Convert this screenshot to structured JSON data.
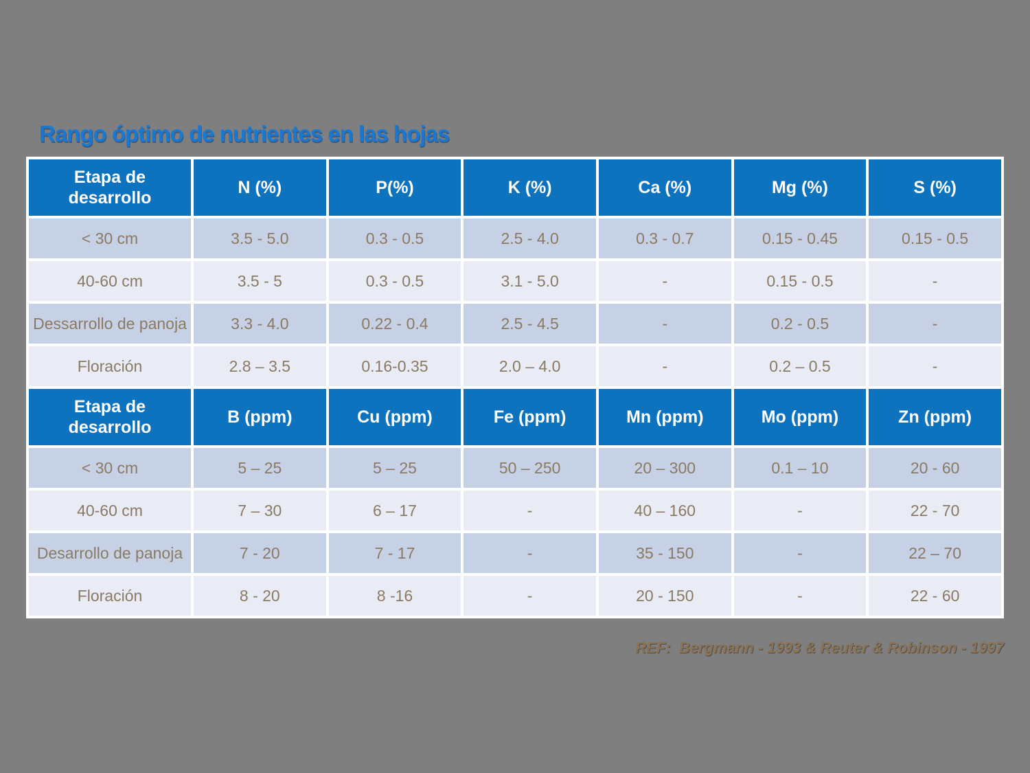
{
  "title": "Rango óptimo de nutrientes en las hojas",
  "reference": "REF:  Bergmann - 1993 & Reuter & Robinson - 1997",
  "colors": {
    "background": "#7f7f7f",
    "title_text": "#1878d2",
    "header_bg": "#0e73be",
    "header_text": "#ffffff",
    "row_band_dark": "#c7d1e5",
    "row_band_light": "#e9ecf5",
    "cell_text": "#8a7a63",
    "reference_text": "#8a7355",
    "grid_lines": "#ffffff"
  },
  "tables": [
    {
      "name": "macronutrients-percent",
      "headers": [
        "Etapa de desarrollo",
        "N (%)",
        "P(%)",
        "K (%)",
        "Ca (%)",
        "Mg (%)",
        "S (%)"
      ],
      "rows": [
        [
          "< 30 cm",
          "3.5 - 5.0",
          "0.3 - 0.5",
          "2.5 - 4.0",
          "0.3 - 0.7",
          "0.15 - 0.45",
          "0.15 - 0.5"
        ],
        [
          "40-60 cm",
          "3.5 - 5",
          "0.3 - 0.5",
          "3.1 - 5.0",
          "-",
          "0.15 - 0.5",
          "-"
        ],
        [
          "Dessarrollo de panoja",
          "3.3 - 4.0",
          "0.22 - 0.4",
          "2.5 - 4.5",
          "-",
          "0.2 - 0.5",
          "-"
        ],
        [
          "Floración",
          "2.8 – 3.5",
          "0.16-0.35",
          "2.0 – 4.0",
          "-",
          "0.2 – 0.5",
          "-"
        ]
      ]
    },
    {
      "name": "micronutrients-ppm",
      "headers": [
        "Etapa de desarrollo",
        "B (ppm)",
        "Cu (ppm)",
        "Fe (ppm)",
        "Mn (ppm)",
        "Mo (ppm)",
        "Zn (ppm)"
      ],
      "rows": [
        [
          "< 30 cm",
          "5 – 25",
          "5 – 25",
          "50 – 250",
          "20 – 300",
          "0.1 – 10",
          "20 - 60"
        ],
        [
          "40-60 cm",
          "7 – 30",
          "6 – 17",
          "-",
          "40 – 160",
          "-",
          "22 - 70"
        ],
        [
          "Desarrollo de panoja",
          "7 - 20",
          "7 - 17",
          "-",
          "35 - 150",
          "-",
          "22 – 70"
        ],
        [
          "Floración",
          "8 - 20",
          "8 -16",
          "-",
          "20 - 150",
          "-",
          "22 - 60"
        ]
      ]
    }
  ]
}
